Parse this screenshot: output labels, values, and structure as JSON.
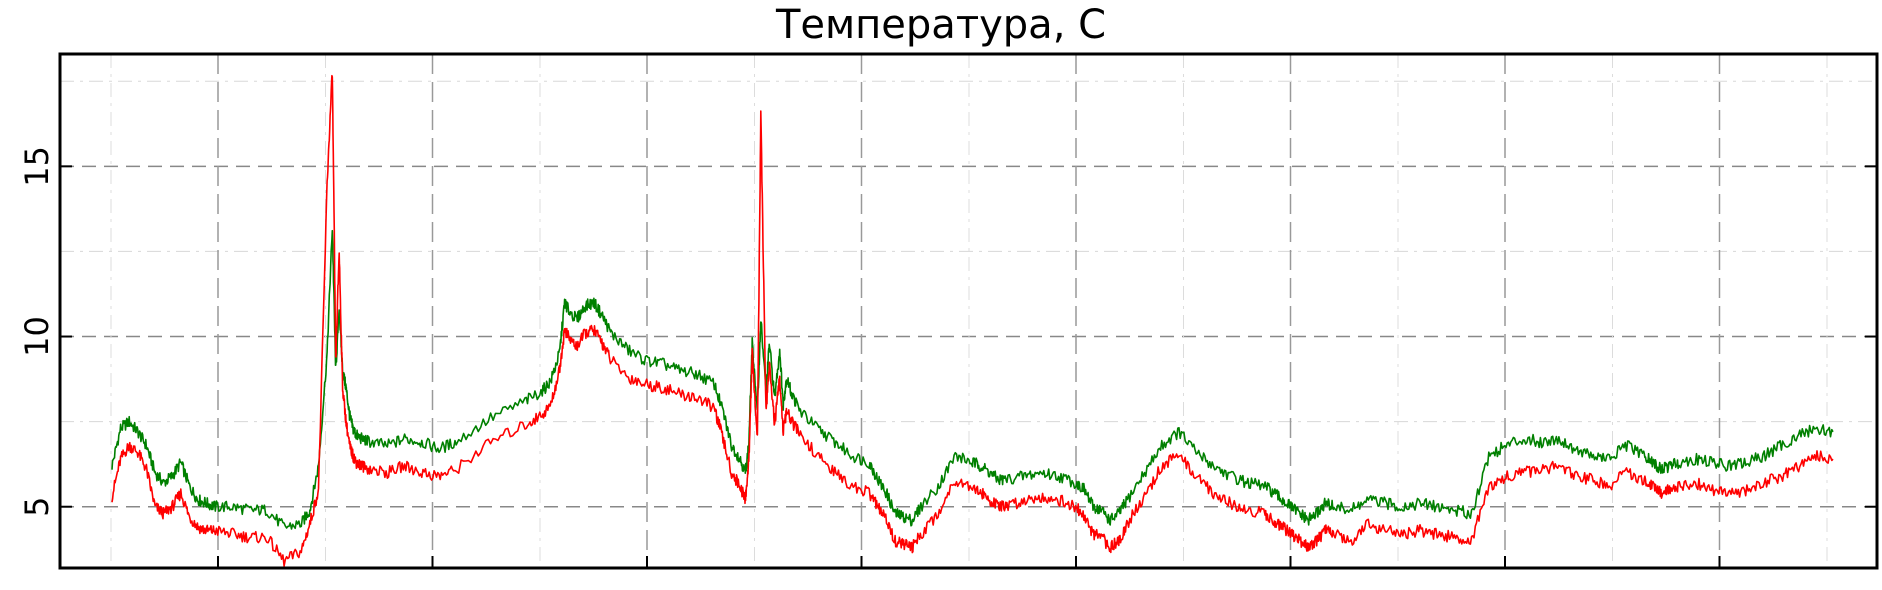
{
  "chart_data": {
    "type": "line",
    "title": "Температура, С",
    "xlabel": "",
    "ylabel": "",
    "ylim": [
      3.2,
      18.3
    ],
    "xlim": [
      0,
      1000
    ],
    "yticks": [
      5,
      10,
      15
    ],
    "ytick_labels": [
      "5",
      "10",
      "15"
    ],
    "grid": true,
    "x_tick_labels_shown": false,
    "series": [
      {
        "color": "#008000",
        "x": [
          0,
          5,
          10,
          15,
          20,
          25,
          30,
          35,
          40,
          45,
          50,
          55,
          60,
          70,
          80,
          90,
          100,
          110,
          115,
          120,
          125,
          128,
          130,
          132,
          134,
          136,
          138,
          140,
          142,
          145,
          150,
          160,
          170,
          180,
          190,
          200,
          220,
          240,
          250,
          255,
          260,
          263,
          265,
          270,
          275,
          280,
          285,
          290,
          300,
          310,
          320,
          330,
          340,
          350,
          355,
          360,
          365,
          368,
          370,
          372,
          375,
          377,
          380,
          382,
          385,
          388,
          390,
          392,
          395,
          400,
          410,
          420,
          430,
          440,
          445,
          450,
          455,
          460,
          465,
          470,
          480,
          490,
          500,
          505,
          510,
          515,
          520,
          530,
          540,
          550,
          560,
          565,
          570,
          575,
          580,
          585,
          590,
          600,
          610,
          620,
          630,
          640,
          650,
          660,
          670,
          675,
          680,
          685,
          690,
          695,
          700,
          705,
          710,
          720,
          730,
          740,
          750,
          760,
          770,
          780,
          790,
          800,
          810,
          820,
          830,
          840,
          850,
          860,
          870,
          880,
          890,
          895,
          900,
          905,
          910,
          920,
          930,
          940,
          950,
          960,
          970,
          980,
          990,
          1000
        ],
        "y": [
          6.2,
          7.3,
          7.5,
          7.2,
          6.8,
          6.0,
          5.7,
          5.9,
          6.3,
          5.6,
          5.2,
          5.1,
          5.0,
          5.0,
          4.9,
          4.9,
          4.4,
          4.5,
          4.9,
          6.2,
          9.5,
          13.2,
          9.0,
          10.8,
          9.0,
          8.5,
          7.7,
          7.3,
          7.1,
          7.0,
          6.9,
          6.8,
          7.0,
          6.9,
          6.7,
          6.9,
          7.6,
          8.1,
          8.4,
          8.7,
          9.5,
          11.0,
          10.8,
          10.5,
          10.9,
          11.0,
          10.6,
          10.1,
          9.6,
          9.3,
          9.2,
          9.0,
          8.9,
          8.6,
          7.8,
          6.8,
          6.4,
          6.0,
          6.8,
          9.8,
          7.8,
          10.5,
          8.4,
          9.8,
          8.2,
          9.6,
          8.0,
          8.8,
          8.3,
          7.8,
          7.3,
          6.9,
          6.5,
          6.3,
          5.8,
          5.4,
          4.8,
          4.7,
          4.6,
          5.0,
          5.6,
          6.5,
          6.3,
          6.2,
          6.0,
          5.8,
          5.8,
          5.9,
          6.0,
          5.9,
          5.7,
          5.5,
          5.0,
          4.9,
          4.6,
          4.8,
          5.2,
          6.0,
          6.8,
          7.2,
          6.6,
          6.2,
          5.9,
          5.7,
          5.6,
          5.4,
          5.2,
          5.0,
          4.8,
          4.6,
          4.8,
          5.1,
          5.0,
          4.9,
          5.2,
          5.1,
          5.0,
          5.1,
          5.0,
          4.9,
          4.8,
          6.5,
          6.8,
          7.0,
          6.9,
          7.0,
          6.7,
          6.5,
          6.4,
          6.8,
          6.5,
          6.3,
          6.1,
          6.2,
          6.3,
          6.4,
          6.3,
          6.2,
          6.3,
          6.5,
          6.8,
          7.1,
          7.3,
          7.2
        ]
      },
      {
        "color": "#ff0000",
        "x": [
          0,
          5,
          10,
          15,
          20,
          25,
          30,
          35,
          40,
          45,
          50,
          55,
          60,
          70,
          80,
          90,
          100,
          110,
          115,
          120,
          125,
          128,
          130,
          132,
          134,
          136,
          138,
          140,
          142,
          145,
          150,
          160,
          170,
          180,
          190,
          200,
          220,
          240,
          250,
          255,
          260,
          263,
          265,
          270,
          275,
          280,
          285,
          290,
          300,
          310,
          320,
          330,
          340,
          350,
          355,
          360,
          365,
          368,
          370,
          372,
          375,
          377,
          380,
          382,
          385,
          388,
          390,
          392,
          395,
          400,
          410,
          420,
          430,
          440,
          445,
          450,
          455,
          460,
          465,
          470,
          480,
          490,
          500,
          505,
          510,
          515,
          520,
          530,
          540,
          550,
          560,
          565,
          570,
          575,
          580,
          585,
          590,
          600,
          610,
          620,
          630,
          640,
          650,
          660,
          670,
          675,
          680,
          685,
          690,
          695,
          700,
          705,
          710,
          720,
          730,
          740,
          750,
          760,
          770,
          780,
          790,
          800,
          810,
          820,
          830,
          840,
          850,
          860,
          870,
          880,
          890,
          895,
          900,
          905,
          910,
          920,
          930,
          940,
          950,
          960,
          970,
          980,
          990,
          1000
        ],
        "y": [
          5.3,
          6.4,
          6.8,
          6.6,
          6.1,
          5.0,
          4.8,
          5.0,
          5.4,
          4.7,
          4.4,
          4.3,
          4.3,
          4.2,
          4.1,
          4.1,
          3.4,
          3.7,
          4.5,
          5.5,
          14.5,
          17.8,
          9.3,
          12.5,
          8.5,
          7.5,
          6.8,
          6.5,
          6.3,
          6.2,
          6.1,
          6.0,
          6.2,
          6.0,
          5.9,
          6.1,
          6.9,
          7.4,
          7.7,
          8.0,
          9.0,
          10.2,
          10.0,
          9.7,
          10.1,
          10.2,
          9.8,
          9.3,
          8.8,
          8.6,
          8.5,
          8.3,
          8.2,
          7.9,
          7.0,
          6.0,
          5.6,
          5.2,
          6.3,
          9.5,
          7.0,
          16.5,
          7.8,
          9.2,
          7.4,
          8.8,
          7.2,
          7.8,
          7.5,
          7.1,
          6.5,
          6.0,
          5.6,
          5.4,
          5.0,
          4.6,
          4.0,
          3.9,
          3.8,
          4.2,
          4.8,
          5.8,
          5.6,
          5.4,
          5.2,
          5.0,
          5.0,
          5.2,
          5.3,
          5.2,
          5.0,
          4.7,
          4.2,
          4.1,
          3.8,
          4.0,
          4.5,
          5.3,
          6.2,
          6.5,
          5.9,
          5.4,
          5.1,
          4.9,
          4.8,
          4.6,
          4.4,
          4.2,
          4.0,
          3.8,
          4.0,
          4.3,
          4.2,
          4.0,
          4.5,
          4.3,
          4.2,
          4.3,
          4.2,
          4.1,
          4.0,
          5.6,
          5.9,
          6.0,
          6.1,
          6.2,
          5.9,
          5.8,
          5.6,
          6.0,
          5.8,
          5.6,
          5.4,
          5.5,
          5.6,
          5.7,
          5.5,
          5.4,
          5.5,
          5.7,
          5.9,
          6.2,
          6.5,
          6.4
        ]
      }
    ]
  }
}
